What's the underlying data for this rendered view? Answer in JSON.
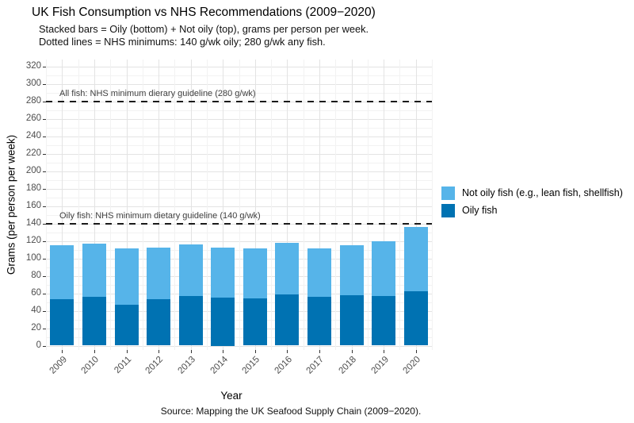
{
  "header": {
    "title": "UK Fish Consumption vs NHS Recommendations (2009−2020)",
    "subtitle_line1": "Stacked bars = Oily (bottom) + Not oily (top), grams per person per week.",
    "subtitle_line2": "Dotted lines = NHS minimums: 140 g/wk oily; 280 g/wk any fish."
  },
  "caption": "Source: Mapping the UK Seafood Supply Chain (2009−2020).",
  "colors": {
    "oily": "#0072B2",
    "not_oily": "#56B4E9",
    "dashed_line": "#1A1A1A",
    "grid_major": "#E3E3E3",
    "grid_minor": "#F2F2F2",
    "axis_text": "#4D4D4D",
    "background": "#FFFFFF"
  },
  "chart_data": {
    "type": "bar",
    "stacked": true,
    "title": "UK Fish Consumption vs NHS Recommendations (2009−2020)",
    "xlabel": "Year",
    "ylabel": "Grams (per person per week)",
    "categories": [
      "2009",
      "2010",
      "2011",
      "2012",
      "2013",
      "2014",
      "2015",
      "2016",
      "2017",
      "2018",
      "2019",
      "2020"
    ],
    "series": [
      {
        "name": "Oily fish",
        "color": "#0072B2",
        "values": [
          53,
          56,
          47,
          53,
          57,
          55,
          54,
          59,
          56,
          58,
          57,
          62
        ]
      },
      {
        "name": "Not oily fish (e.g., lean fish, shellfish)",
        "color": "#56B4E9",
        "values": [
          62,
          61,
          64,
          59,
          59,
          57,
          57,
          59,
          55,
          57,
          63,
          74
        ]
      }
    ],
    "stack_totals": [
      115,
      117,
      111,
      112,
      116,
      112,
      111,
      118,
      111,
      115,
      120,
      136
    ],
    "ylim": [
      0,
      330
    ],
    "yticks": [
      0,
      20,
      40,
      60,
      80,
      100,
      120,
      140,
      160,
      180,
      200,
      220,
      240,
      260,
      280,
      300,
      320
    ],
    "grid": "major-and-minor",
    "legend_position": "right",
    "legend": [
      {
        "label": "Not oily fish (e.g., lean fish, shellfish)",
        "color": "#56B4E9"
      },
      {
        "label": "Oily fish",
        "color": "#0072B2"
      }
    ],
    "reference_lines": [
      {
        "value": 280,
        "label": "All fish: NHS minimum dierary guideline (280 g/wk)"
      },
      {
        "value": 140,
        "label": "Oily fish: NHS minimum dietary guideline (140 g/wk)"
      }
    ]
  }
}
